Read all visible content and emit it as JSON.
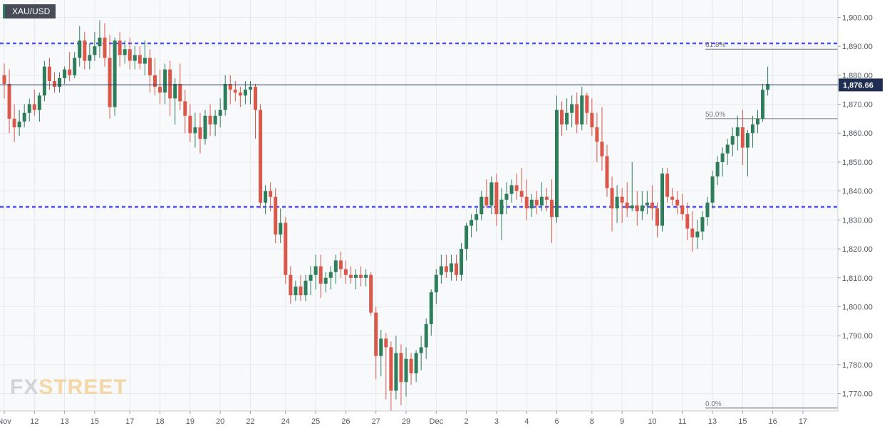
{
  "symbol": "XAU/USD",
  "watermark": {
    "part1": "FX",
    "part2": "STREET"
  },
  "colors": {
    "up": "#2e7d5b",
    "down": "#d9584a",
    "level_line": "#4d52f2",
    "price_tag": "#1f2d52",
    "grid": "#e7e9ee"
  },
  "chart_data": {
    "type": "candlestick",
    "title": "XAU/USD",
    "ylim": [
      1764,
      1906
    ],
    "y_ticks": [
      "1,770.00",
      "1,780.00",
      "1,790.00",
      "1,800.00",
      "1,810.00",
      "1,820.00",
      "1,830.00",
      "1,840.00",
      "1,850.00",
      "1,860.00",
      "1,870.00",
      "1,880.00",
      "1,890.00",
      "1,900.00"
    ],
    "y_tick_values": [
      1770,
      1780,
      1790,
      1800,
      1810,
      1820,
      1830,
      1840,
      1850,
      1860,
      1870,
      1880,
      1890,
      1900
    ],
    "x_ticks": [
      {
        "label": "Nov",
        "i": 0
      },
      {
        "label": "12",
        "i": 6
      },
      {
        "label": "13",
        "i": 12
      },
      {
        "label": "15",
        "i": 18
      },
      {
        "label": "17",
        "i": 25
      },
      {
        "label": "18",
        "i": 31
      },
      {
        "label": "19",
        "i": 37
      },
      {
        "label": "20",
        "i": 43
      },
      {
        "label": "22",
        "i": 49
      },
      {
        "label": "24",
        "i": 56
      },
      {
        "label": "25",
        "i": 62
      },
      {
        "label": "26",
        "i": 68
      },
      {
        "label": "27",
        "i": 74
      },
      {
        "label": "29",
        "i": 80
      },
      {
        "label": "Dec",
        "i": 86
      },
      {
        "label": "2",
        "i": 92
      },
      {
        "label": "3",
        "i": 98
      },
      {
        "label": "4",
        "i": 104
      },
      {
        "label": "6",
        "i": 110
      },
      {
        "label": "8",
        "i": 117
      },
      {
        "label": "9",
        "i": 123
      },
      {
        "label": "10",
        "i": 129
      },
      {
        "label": "11",
        "i": 135
      },
      {
        "label": "13",
        "i": 141
      },
      {
        "label": "15",
        "i": 147
      },
      {
        "label": "16",
        "i": 153
      },
      {
        "label": "17",
        "i": 159
      }
    ],
    "ohlc": [
      [
        1880,
        1884,
        1872,
        1877
      ],
      [
        1877,
        1882,
        1860,
        1865
      ],
      [
        1865,
        1870,
        1857,
        1862
      ],
      [
        1862,
        1868,
        1859,
        1864
      ],
      [
        1864,
        1870,
        1862,
        1867
      ],
      [
        1867,
        1872,
        1864,
        1870
      ],
      [
        1870,
        1875,
        1866,
        1868
      ],
      [
        1868,
        1874,
        1864,
        1873
      ],
      [
        1873,
        1885,
        1871,
        1883
      ],
      [
        1883,
        1886,
        1875,
        1878
      ],
      [
        1878,
        1881,
        1874,
        1876
      ],
      [
        1876,
        1881,
        1874,
        1879
      ],
      [
        1879,
        1883,
        1877,
        1882
      ],
      [
        1882,
        1888,
        1878,
        1880
      ],
      [
        1880,
        1888,
        1879,
        1886
      ],
      [
        1886,
        1897,
        1883,
        1892
      ],
      [
        1892,
        1895,
        1882,
        1885
      ],
      [
        1885,
        1891,
        1882,
        1887
      ],
      [
        1887,
        1895,
        1885,
        1890
      ],
      [
        1890,
        1899,
        1886,
        1893
      ],
      [
        1893,
        1898,
        1883,
        1886
      ],
      [
        1886,
        1894,
        1865,
        1869
      ],
      [
        1869,
        1893,
        1866,
        1892
      ],
      [
        1892,
        1895,
        1883,
        1887
      ],
      [
        1887,
        1892,
        1884,
        1889
      ],
      [
        1889,
        1893,
        1882,
        1885
      ],
      [
        1885,
        1890,
        1882,
        1887
      ],
      [
        1887,
        1890,
        1882,
        1884
      ],
      [
        1884,
        1892,
        1880,
        1886
      ],
      [
        1886,
        1889,
        1874,
        1880
      ],
      [
        1880,
        1886,
        1873,
        1876
      ],
      [
        1876,
        1882,
        1870,
        1874
      ],
      [
        1874,
        1884,
        1870,
        1882
      ],
      [
        1882,
        1885,
        1866,
        1872
      ],
      [
        1872,
        1879,
        1863,
        1877
      ],
      [
        1877,
        1884,
        1868,
        1871
      ],
      [
        1871,
        1875,
        1860,
        1866
      ],
      [
        1866,
        1870,
        1857,
        1860
      ],
      [
        1860,
        1867,
        1855,
        1862
      ],
      [
        1862,
        1867,
        1853,
        1858
      ],
      [
        1858,
        1868,
        1856,
        1866
      ],
      [
        1866,
        1870,
        1859,
        1863
      ],
      [
        1863,
        1868,
        1859,
        1866
      ],
      [
        1866,
        1872,
        1862,
        1868
      ],
      [
        1868,
        1880,
        1866,
        1877
      ],
      [
        1877,
        1880,
        1870,
        1875
      ],
      [
        1875,
        1878,
        1871,
        1874
      ],
      [
        1874,
        1876,
        1869,
        1873
      ],
      [
        1873,
        1878,
        1870,
        1875
      ],
      [
        1875,
        1878,
        1870,
        1876
      ],
      [
        1876,
        1877,
        1858,
        1868
      ],
      [
        1868,
        1870,
        1834,
        1836
      ],
      [
        1836,
        1842,
        1832,
        1840
      ],
      [
        1840,
        1843,
        1833,
        1838
      ],
      [
        1838,
        1841,
        1822,
        1825
      ],
      [
        1825,
        1834,
        1822,
        1829
      ],
      [
        1829,
        1831,
        1808,
        1811
      ],
      [
        1811,
        1814,
        1801,
        1804
      ],
      [
        1804,
        1809,
        1802,
        1807
      ],
      [
        1807,
        1811,
        1802,
        1804
      ],
      [
        1804,
        1811,
        1802,
        1809
      ],
      [
        1809,
        1814,
        1804,
        1811
      ],
      [
        1811,
        1818,
        1806,
        1814
      ],
      [
        1814,
        1818,
        1803,
        1808
      ],
      [
        1808,
        1812,
        1805,
        1810
      ],
      [
        1810,
        1814,
        1806,
        1812
      ],
      [
        1812,
        1818,
        1808,
        1816
      ],
      [
        1816,
        1819,
        1810,
        1813
      ],
      [
        1813,
        1816,
        1808,
        1811
      ],
      [
        1811,
        1814,
        1808,
        1810
      ],
      [
        1810,
        1813,
        1806,
        1811
      ],
      [
        1811,
        1814,
        1807,
        1810
      ],
      [
        1810,
        1813,
        1807,
        1811
      ],
      [
        1811,
        1812,
        1797,
        1798
      ],
      [
        1798,
        1800,
        1775,
        1783
      ],
      [
        1783,
        1792,
        1776,
        1789
      ],
      [
        1789,
        1791,
        1768,
        1786
      ],
      [
        1786,
        1788,
        1764,
        1771
      ],
      [
        1771,
        1790,
        1768,
        1784
      ],
      [
        1784,
        1787,
        1766,
        1774
      ],
      [
        1774,
        1786,
        1769,
        1782
      ],
      [
        1782,
        1784,
        1773,
        1777
      ],
      [
        1777,
        1785,
        1774,
        1784
      ],
      [
        1784,
        1790,
        1778,
        1786
      ],
      [
        1786,
        1796,
        1782,
        1794
      ],
      [
        1794,
        1806,
        1790,
        1805
      ],
      [
        1805,
        1813,
        1801,
        1811
      ],
      [
        1811,
        1818,
        1808,
        1814
      ],
      [
        1814,
        1818,
        1810,
        1812
      ],
      [
        1812,
        1818,
        1809,
        1815
      ],
      [
        1815,
        1818,
        1809,
        1811
      ],
      [
        1811,
        1822,
        1809,
        1820
      ],
      [
        1820,
        1829,
        1816,
        1828
      ],
      [
        1828,
        1832,
        1824,
        1830
      ],
      [
        1830,
        1834,
        1826,
        1832
      ],
      [
        1832,
        1840,
        1830,
        1838
      ],
      [
        1838,
        1844,
        1834,
        1835
      ],
      [
        1835,
        1845,
        1832,
        1843
      ],
      [
        1843,
        1846,
        1828,
        1832
      ],
      [
        1832,
        1841,
        1823,
        1837
      ],
      [
        1837,
        1843,
        1832,
        1839
      ],
      [
        1839,
        1844,
        1836,
        1842
      ],
      [
        1842,
        1846,
        1837,
        1840
      ],
      [
        1840,
        1848,
        1836,
        1838
      ],
      [
        1838,
        1844,
        1830,
        1834
      ],
      [
        1834,
        1839,
        1831,
        1837
      ],
      [
        1837,
        1840,
        1832,
        1835
      ],
      [
        1835,
        1843,
        1833,
        1838
      ],
      [
        1838,
        1841,
        1833,
        1837
      ],
      [
        1837,
        1844,
        1822,
        1831
      ],
      [
        1831,
        1873,
        1829,
        1868
      ],
      [
        1868,
        1871,
        1859,
        1863
      ],
      [
        1863,
        1872,
        1861,
        1867
      ],
      [
        1867,
        1873,
        1862,
        1870
      ],
      [
        1870,
        1874,
        1860,
        1863
      ],
      [
        1863,
        1876,
        1861,
        1873
      ],
      [
        1873,
        1874,
        1863,
        1867
      ],
      [
        1867,
        1872,
        1859,
        1862
      ],
      [
        1862,
        1867,
        1850,
        1857
      ],
      [
        1857,
        1869,
        1847,
        1852
      ],
      [
        1852,
        1856,
        1838,
        1841
      ],
      [
        1841,
        1845,
        1826,
        1834
      ],
      [
        1834,
        1842,
        1829,
        1838
      ],
      [
        1838,
        1841,
        1829,
        1836
      ],
      [
        1836,
        1843,
        1831,
        1834
      ],
      [
        1834,
        1850,
        1833,
        1835
      ],
      [
        1835,
        1840,
        1828,
        1833
      ],
      [
        1833,
        1840,
        1830,
        1835
      ],
      [
        1835,
        1840,
        1832,
        1836
      ],
      [
        1836,
        1842,
        1830,
        1834
      ],
      [
        1834,
        1836,
        1824,
        1828
      ],
      [
        1828,
        1848,
        1826,
        1846
      ],
      [
        1846,
        1848,
        1836,
        1838
      ],
      [
        1838,
        1841,
        1835,
        1837
      ],
      [
        1837,
        1840,
        1832,
        1835
      ],
      [
        1835,
        1839,
        1830,
        1832
      ],
      [
        1832,
        1836,
        1823,
        1827
      ],
      [
        1827,
        1833,
        1819,
        1824
      ],
      [
        1824,
        1830,
        1820,
        1826
      ],
      [
        1826,
        1833,
        1823,
        1831
      ],
      [
        1831,
        1838,
        1828,
        1836
      ],
      [
        1836,
        1847,
        1834,
        1845
      ],
      [
        1845,
        1852,
        1842,
        1850
      ],
      [
        1850,
        1855,
        1845,
        1853
      ],
      [
        1853,
        1858,
        1849,
        1856
      ],
      [
        1856,
        1862,
        1852,
        1859
      ],
      [
        1859,
        1866,
        1854,
        1862
      ],
      [
        1862,
        1868,
        1849,
        1855
      ],
      [
        1855,
        1861,
        1845,
        1860
      ],
      [
        1860,
        1866,
        1855,
        1863
      ],
      [
        1863,
        1868,
        1860,
        1865
      ],
      [
        1865,
        1877,
        1864,
        1875
      ],
      [
        1875,
        1883,
        1873,
        1877
      ]
    ],
    "horizontal_levels": [
      1891,
      1834.5
    ],
    "fibonacci": [
      {
        "label": "61.8%",
        "value": 1889
      },
      {
        "label": "50.0%",
        "value": 1865
      },
      {
        "label": "0.0%",
        "value": 1765
      }
    ],
    "current_price": 1876.66,
    "current_price_label": "1,876.66"
  }
}
